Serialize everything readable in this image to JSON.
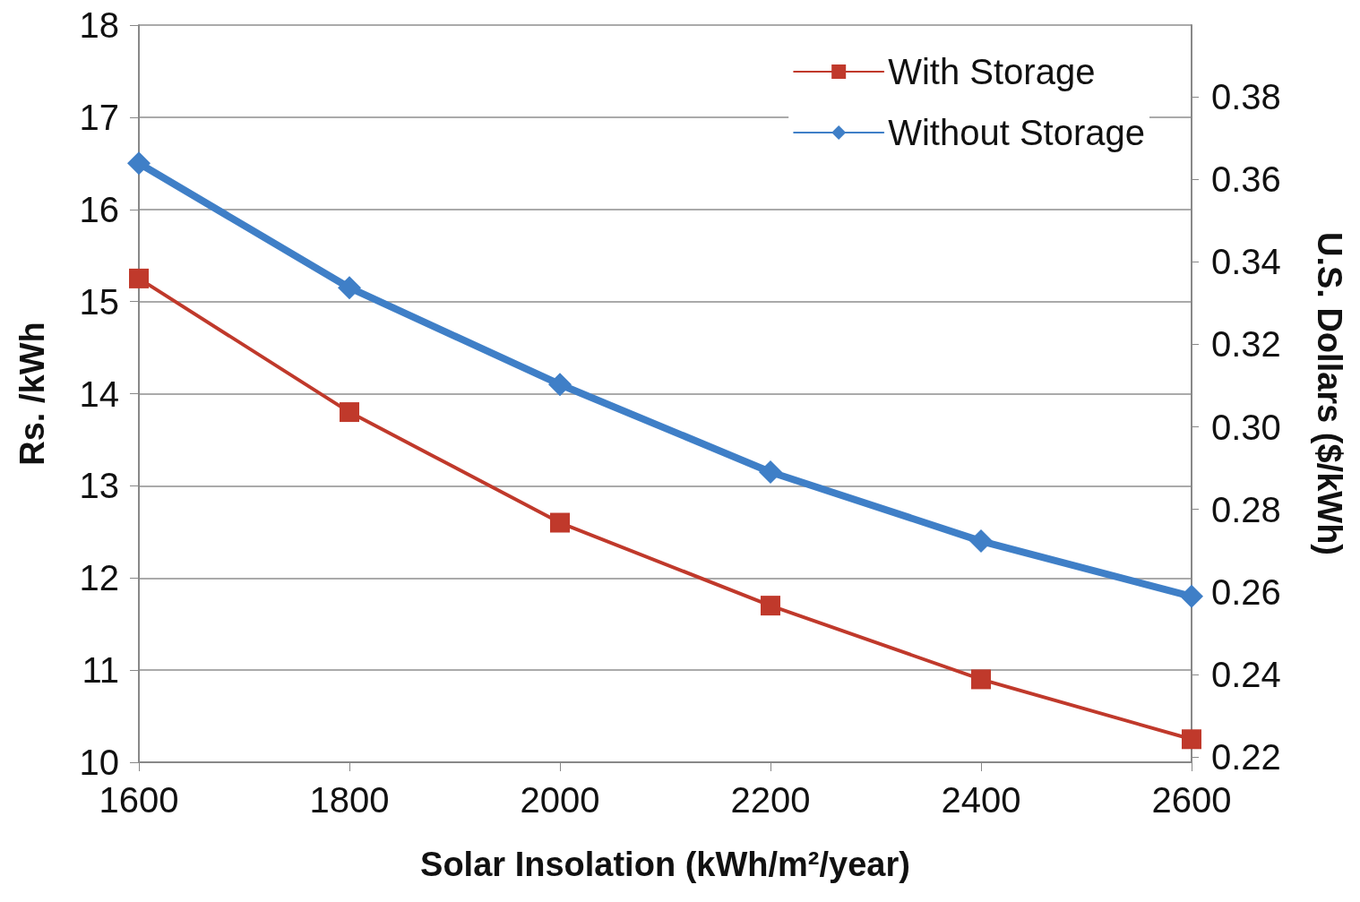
{
  "chart_data": {
    "type": "line",
    "xlabel": "Solar Insolation (kWh/m²/year)",
    "ylabel": "Rs. /kWh",
    "y2label": "U.S. Dollars ($/kWh)",
    "x": [
      1600,
      1800,
      2000,
      2200,
      2400,
      2600
    ],
    "series": [
      {
        "name": "With Storage",
        "color": "#c0392b",
        "marker": "square",
        "values": [
          15.25,
          13.8,
          12.6,
          11.7,
          10.9,
          10.25
        ]
      },
      {
        "name": "Without Storage",
        "color": "#3f7fc7",
        "marker": "diamond",
        "values": [
          16.5,
          15.15,
          14.1,
          13.15,
          12.4,
          11.8
        ]
      }
    ],
    "xlim": [
      1600,
      2600
    ],
    "xticks": [
      1600,
      1800,
      2000,
      2200,
      2400,
      2600
    ],
    "ylim": [
      10,
      18
    ],
    "yticks": [
      10,
      11,
      12,
      13,
      14,
      15,
      16,
      17,
      18
    ],
    "y2lim": [
      0.2187,
      0.3974
    ],
    "y2ticks": [
      {
        "value": 0.22,
        "label": "0.22"
      },
      {
        "value": 0.24,
        "label": "0.24"
      },
      {
        "value": 0.26,
        "label": "0.26"
      },
      {
        "value": 0.28,
        "label": "0.28"
      },
      {
        "value": 0.3,
        "label": "0.30"
      },
      {
        "value": 0.32,
        "label": "0.32"
      },
      {
        "value": 0.34,
        "label": "0.34"
      },
      {
        "value": 0.36,
        "label": "0.36"
      },
      {
        "value": 0.38,
        "label": "0.38"
      }
    ],
    "grid": "y",
    "legend": "top right",
    "line_style": "solid"
  }
}
